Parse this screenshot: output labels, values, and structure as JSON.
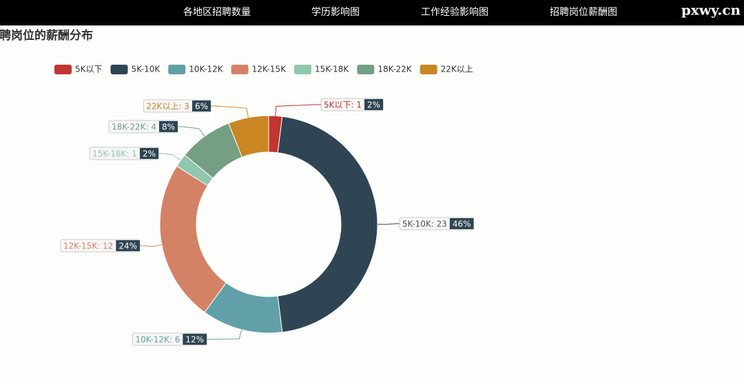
{
  "nav": {
    "items": [
      "各地区招聘数量",
      "学历影响图",
      "工作经验影响图",
      "招聘岗位薪酬图"
    ]
  },
  "watermark": "pxwy.cn",
  "chart_data": {
    "type": "pie",
    "title": "招聘岗位的薪酬分布",
    "categories": [
      "5K以下",
      "5K-10K",
      "10K-12K",
      "12K-15K",
      "15K-18K",
      "18K-22K",
      "22K以上"
    ],
    "values": [
      1,
      23,
      6,
      12,
      1,
      4,
      3
    ],
    "value_labels": [
      "5K以下: 1",
      "5K-10K: 23",
      "10K-12K: 6",
      "12K-15K: 12",
      "15K-18K: 1",
      "18K-22K: 4",
      "22K以上: 3"
    ],
    "percent_labels": [
      "2%",
      "46%",
      "12%",
      "24%",
      "2%",
      "8%",
      "6%"
    ],
    "colors": [
      "#c23531",
      "#2f4554",
      "#61a0a8",
      "#d48265",
      "#91c7ae",
      "#749f83",
      "#ca8622"
    ],
    "donut": true,
    "legend": "top"
  }
}
